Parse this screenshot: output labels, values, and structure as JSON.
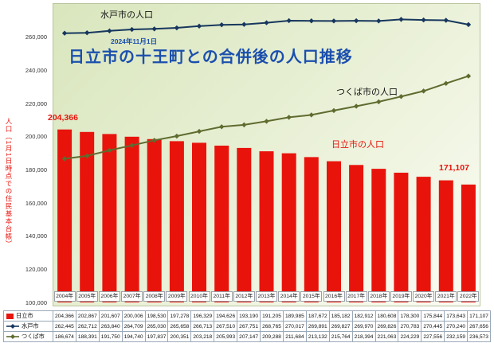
{
  "header": {
    "date": "2024年11月1日",
    "title": "日立市の十王町との合併後の人口推移"
  },
  "annotations": {
    "mito_line_label": "水戸市の人口",
    "tsukuba_line_label": "つくば市の人口",
    "hitachi_bar_label": "日立市の人口",
    "first_bar_value": "204,366",
    "last_bar_value": "171,107"
  },
  "chart_data": {
    "type": "bar",
    "title": "日立市の十王町との合併後の人口推移",
    "subtitle": "2024年11月1日",
    "ylabel": "人口（1月1日時点での住民基本台帳）",
    "xlabel": "",
    "ylim": [
      100000,
      270000
    ],
    "y_ticks": [
      100000,
      120000,
      140000,
      160000,
      180000,
      200000,
      220000,
      240000,
      260000
    ],
    "grid": false,
    "legend_position": "bottom-table-left",
    "categories": [
      "2004年",
      "2005年",
      "2006年",
      "2007年",
      "2008年",
      "2009年",
      "2010年",
      "2011年",
      "2012年",
      "2013年",
      "2014年",
      "2015年",
      "2016年",
      "2017年",
      "2018年",
      "2019年",
      "2020年",
      "2021年",
      "2022年"
    ],
    "series": [
      {
        "name": "日立市",
        "type": "bar",
        "color": "#e8140c",
        "values": [
          204366,
          202867,
          201607,
          200006,
          198530,
          197278,
          196329,
          194626,
          193190,
          191205,
          189985,
          187672,
          185182,
          182912,
          180608,
          178300,
          175844,
          173643,
          171107
        ]
      },
      {
        "name": "水戸市",
        "type": "line",
        "color": "#17375e",
        "values": [
          262445,
          262712,
          263840,
          264709,
          265030,
          265658,
          266713,
          267510,
          267751,
          268765,
          270017,
          269891,
          269827,
          269970,
          269826,
          270783,
          270445,
          270240,
          267656
        ]
      },
      {
        "name": "つくば市",
        "type": "line",
        "color": "#5f6b2f",
        "values": [
          186674,
          188391,
          191750,
          194740,
          197837,
          200351,
          203218,
          205993,
          207147,
          209288,
          211684,
          213132,
          215764,
          218394,
          221063,
          224229,
          227556,
          232159,
          236573
        ]
      }
    ]
  },
  "colors": {
    "title_blue": "#1b4fae",
    "bar_red": "#e8140c",
    "mito_navy": "#17375e",
    "tsukuba_olive": "#5f6b2f",
    "plot_bg_start": "#d9e6bd",
    "plot_bg_end": "#fbfcf4"
  }
}
